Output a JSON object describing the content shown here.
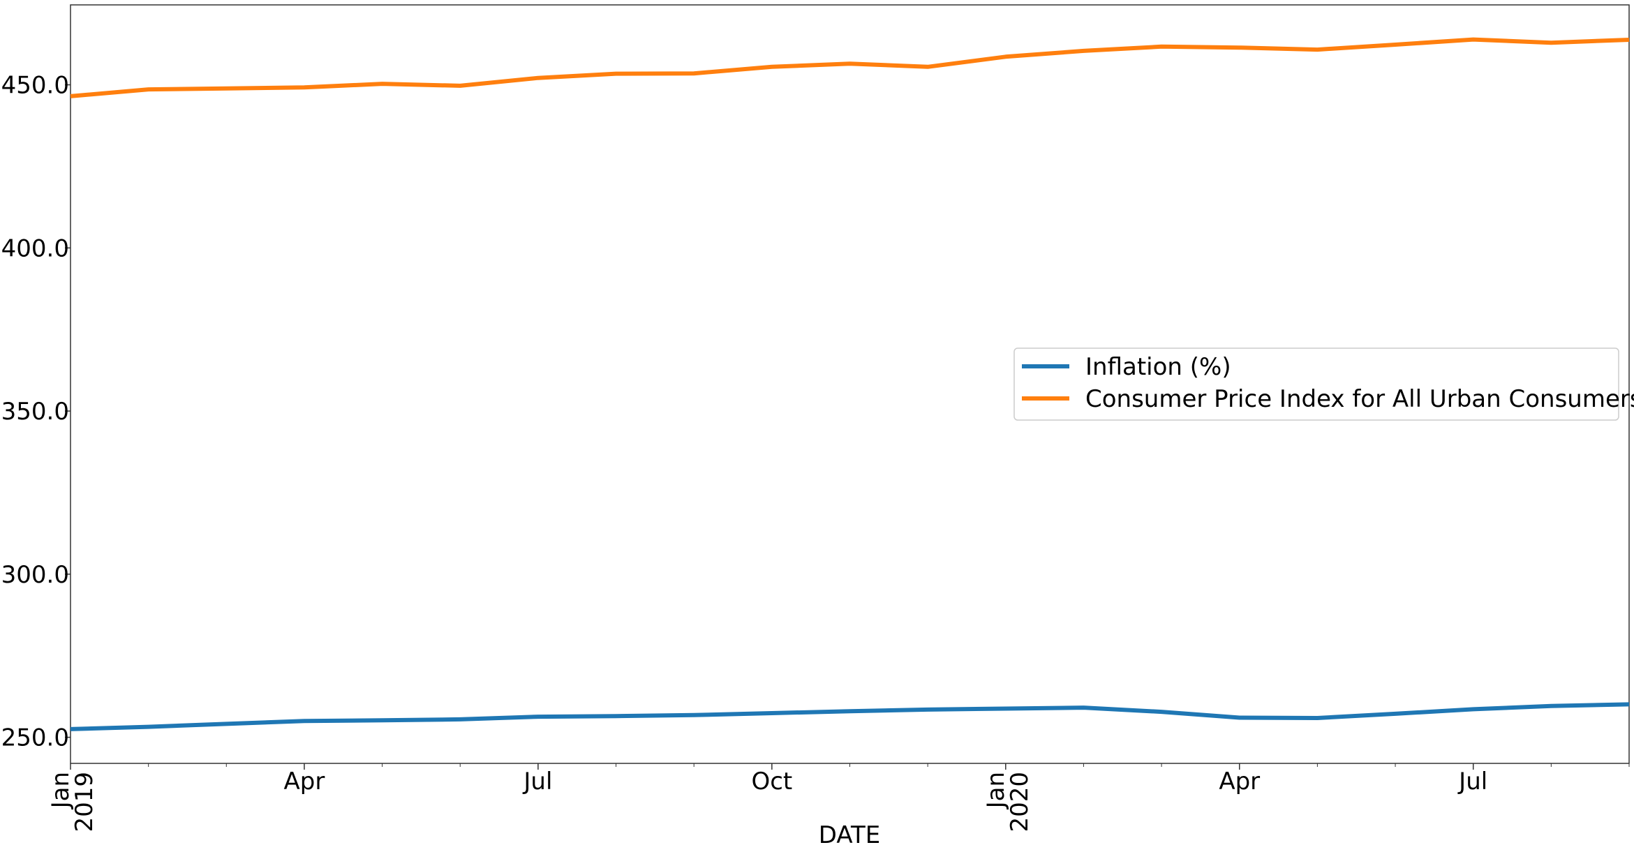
{
  "chart_data": {
    "type": "line",
    "xlabel": "DATE",
    "ylabel": "",
    "title": "",
    "x": [
      "2019-01",
      "2019-02",
      "2019-03",
      "2019-04",
      "2019-05",
      "2019-06",
      "2019-07",
      "2019-08",
      "2019-09",
      "2019-10",
      "2019-11",
      "2019-12",
      "2020-01",
      "2020-02",
      "2020-03",
      "2020-04",
      "2020-05",
      "2020-06",
      "2020-07",
      "2020-08",
      "2020-09"
    ],
    "xlim": [
      "2019-01",
      "2020-09"
    ],
    "ylim": [
      242,
      474.5
    ],
    "yticks": [
      250.0,
      300.0,
      350.0,
      400.0,
      450.0
    ],
    "ytick_labels": [
      "250.0",
      "300.0",
      "350.0",
      "400.0",
      "450.0"
    ],
    "xticks": [
      {
        "x": "2019-01",
        "major": "Jan",
        "minor": "2019"
      },
      {
        "x": "2019-04",
        "major": "Apr",
        "minor": ""
      },
      {
        "x": "2019-07",
        "major": "Jul",
        "minor": ""
      },
      {
        "x": "2019-10",
        "major": "Oct",
        "minor": ""
      },
      {
        "x": "2020-01",
        "major": "Jan",
        "minor": "2020"
      },
      {
        "x": "2020-04",
        "major": "Apr",
        "minor": ""
      },
      {
        "x": "2020-07",
        "major": "Jul",
        "minor": ""
      }
    ],
    "series": [
      {
        "name": "Inflation (%)",
        "color": "#1f77b4",
        "values": [
          252.5,
          253.2,
          254.1,
          255.0,
          255.2,
          255.5,
          256.3,
          256.5,
          256.8,
          257.4,
          258.0,
          258.5,
          258.8,
          259.1,
          257.8,
          256.0,
          255.9,
          257.2,
          258.6,
          259.6,
          260.1
        ]
      },
      {
        "name": "Consumer Price Index for All Urban Consumers",
        "color": "#ff7f0e",
        "values": [
          446.5,
          448.6,
          448.9,
          449.2,
          450.3,
          449.7,
          452.1,
          453.4,
          453.5,
          455.5,
          456.5,
          455.5,
          458.6,
          460.4,
          461.7,
          461.4,
          460.8,
          462.3,
          463.9,
          462.9,
          463.8
        ]
      }
    ],
    "legend_position": "center-right",
    "grid": false
  }
}
